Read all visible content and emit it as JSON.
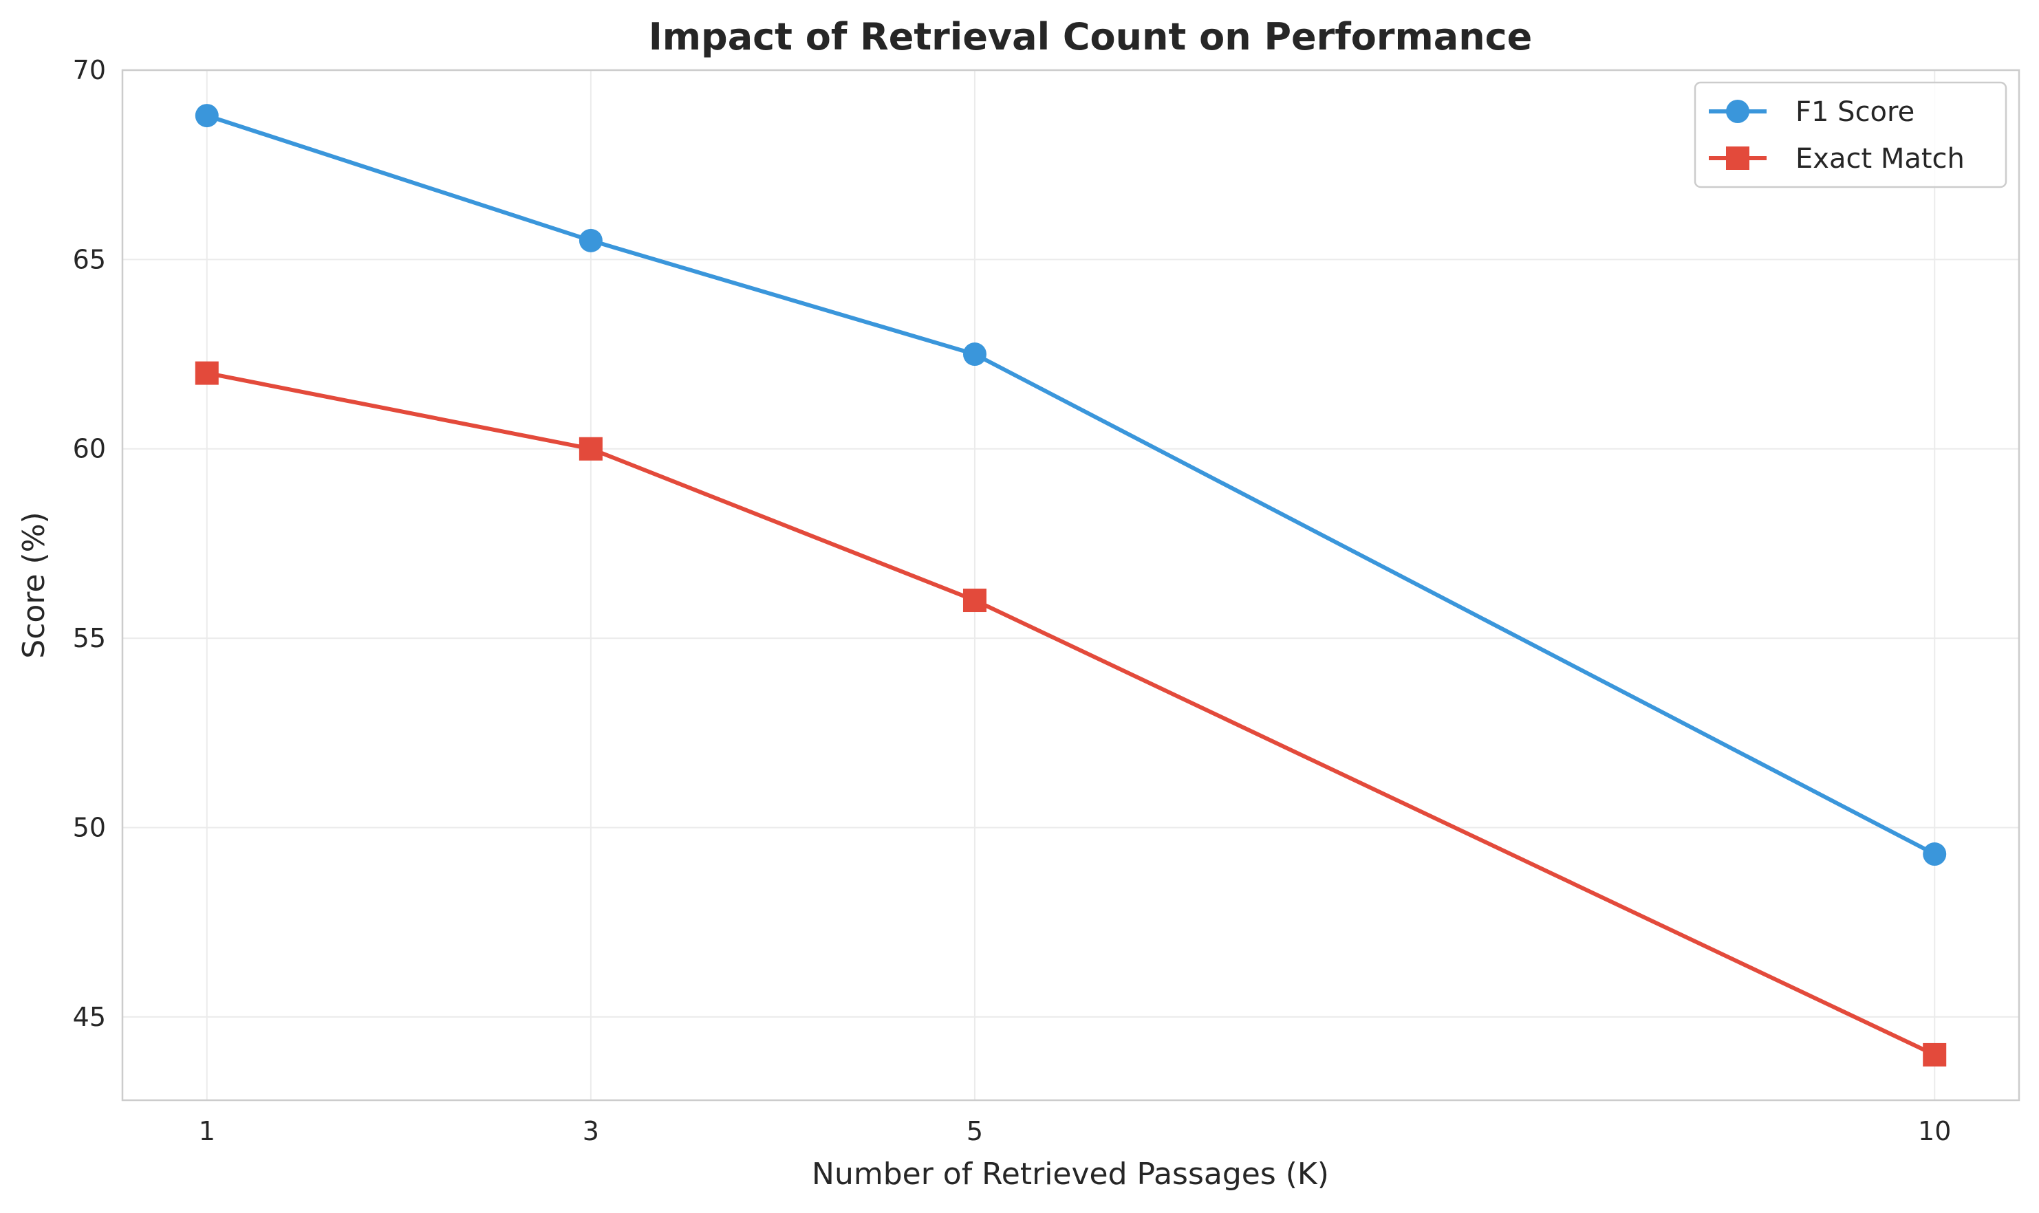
{
  "chart_data": {
    "type": "line",
    "title": "Impact of Retrieval Count on Performance",
    "xlabel": "Number of Retrieved Passages (K)",
    "ylabel": "Score (%)",
    "x": [
      1,
      3,
      5,
      10
    ],
    "xticks": [
      1,
      3,
      5,
      10
    ],
    "xlim": [
      0.56,
      10.44
    ],
    "ylim": [
      42.8,
      70
    ],
    "yticks": [
      45,
      50,
      55,
      60,
      65,
      70
    ],
    "grid": true,
    "legend_position": "top-right",
    "series": [
      {
        "name": "F1 Score",
        "values": [
          68.8,
          65.5,
          62.5,
          49.3
        ],
        "color": "#3a96db",
        "marker": "circle"
      },
      {
        "name": "Exact Match",
        "values": [
          62.0,
          60.0,
          56.0,
          44.0
        ],
        "color": "#e34a3b",
        "marker": "square"
      }
    ]
  }
}
